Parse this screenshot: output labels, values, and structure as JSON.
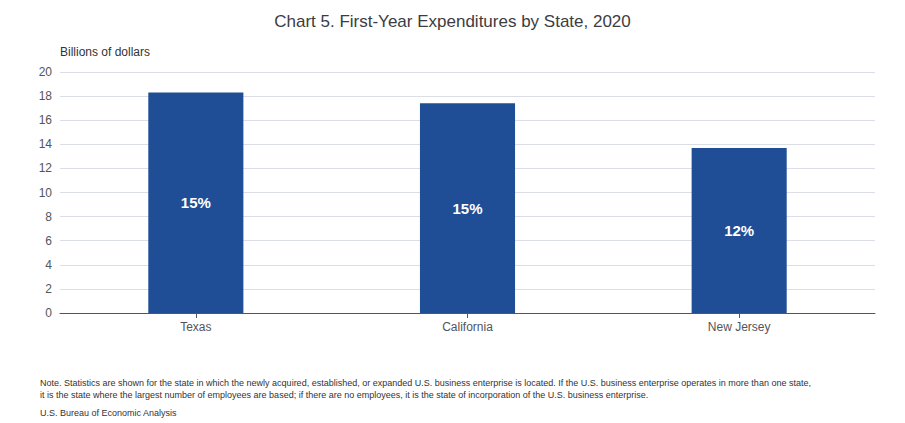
{
  "chart_data": {
    "type": "bar",
    "title": "Chart 5. First-Year Expenditures by State, 2020",
    "ylabel": "Billions of dollars",
    "categories": [
      "Texas",
      "California",
      "New Jersey"
    ],
    "values": [
      18.3,
      17.4,
      13.7
    ],
    "bar_labels": [
      "15%",
      "15%",
      "12%"
    ],
    "color": "#1F4E96",
    "ylim": [
      0,
      20
    ],
    "yticks": [
      0,
      2,
      4,
      6,
      8,
      10,
      12,
      14,
      16,
      18,
      20
    ],
    "grid": true,
    "notes": [
      "Note. Statistics are shown for the state in which the newly acquired, established, or expanded U.S. business enterprise is located. If the U.S. business enterprise operates in more than one state,",
      "it is the state where the largest number of employees are based; if there are no employees, it is the state of incorporation of the U.S. business enterprise."
    ],
    "source": "U.S. Bureau of Economic Analysis"
  }
}
